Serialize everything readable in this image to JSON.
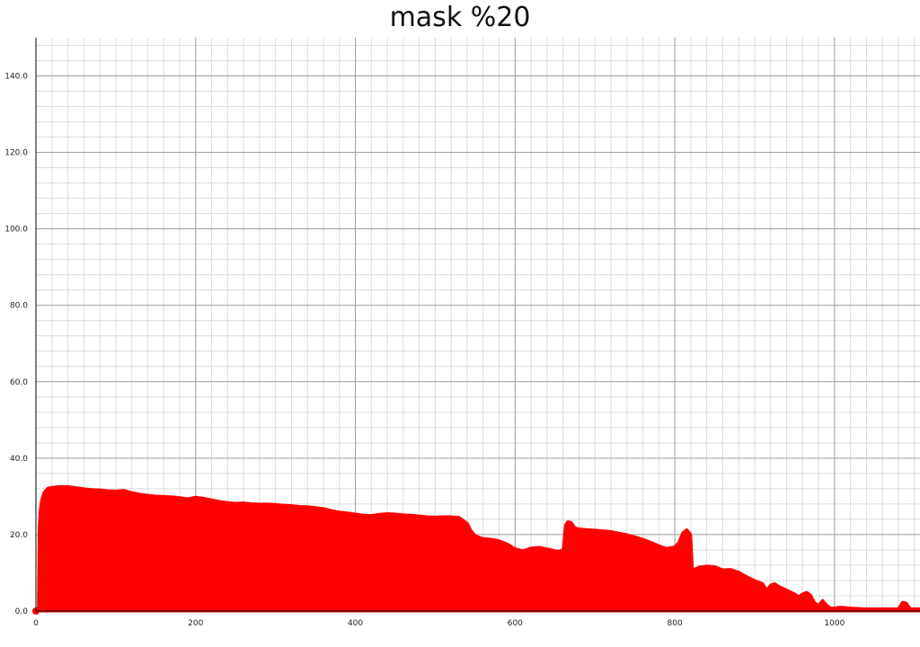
{
  "chart_data": {
    "type": "area",
    "title": "mask %20",
    "xlabel": "",
    "ylabel": "",
    "xlim": [
      0,
      1107
    ],
    "ylim": [
      0,
      150
    ],
    "x_ticks": [
      0,
      200,
      400,
      600,
      800,
      1000
    ],
    "x_tick_labels": [
      "0",
      "200",
      "400",
      "600",
      "800",
      "1000"
    ],
    "y_ticks": [
      0,
      20,
      40,
      60,
      80,
      100,
      120,
      140
    ],
    "y_tick_labels": [
      "0.0",
      "20.0",
      "40.0",
      "60.0",
      "80.0",
      "100.0",
      "120.0",
      "140.0"
    ],
    "grid": true,
    "minor_grid": true,
    "legend": "none",
    "color": "#ff0000",
    "series": [
      {
        "x": [
          0,
          3,
          4,
          5,
          7,
          10,
          15,
          20,
          30,
          40,
          50,
          60,
          70,
          80,
          90,
          100,
          110,
          120,
          130,
          140,
          150,
          160,
          170,
          180,
          190,
          200,
          210,
          220,
          230,
          240,
          250,
          260,
          270,
          280,
          290,
          300,
          310,
          320,
          330,
          340,
          350,
          360,
          370,
          380,
          390,
          400,
          410,
          420,
          430,
          440,
          450,
          460,
          470,
          480,
          490,
          500,
          510,
          520,
          530,
          540,
          545,
          550,
          555,
          560,
          570,
          580,
          590,
          600,
          610,
          620,
          630,
          640,
          650,
          655,
          660,
          663,
          666,
          670,
          675,
          680,
          690,
          700,
          710,
          720,
          730,
          740,
          750,
          760,
          770,
          780,
          790,
          800,
          805,
          810,
          815,
          820,
          822,
          825,
          830,
          840,
          850,
          860,
          870,
          880,
          890,
          900,
          910,
          915,
          920,
          925,
          930,
          940,
          950,
          955,
          960,
          965,
          970,
          975,
          980,
          985,
          990,
          995,
          1000,
          1005,
          1010,
          1020,
          1040,
          1060,
          1080,
          1085,
          1090,
          1095,
          1100,
          1107
        ],
        "y": [
          0,
          0,
          22,
          26,
          29,
          31,
          32.2,
          32.4,
          32.6,
          32.6,
          32.3,
          32.0,
          31.8,
          31.7,
          31.5,
          31.4,
          31.6,
          31.0,
          30.6,
          30.3,
          30.1,
          30.0,
          29.9,
          29.7,
          29.4,
          29.8,
          29.5,
          29.1,
          28.7,
          28.4,
          28.2,
          28.3,
          28.1,
          28.0,
          28.0,
          27.9,
          27.7,
          27.6,
          27.4,
          27.3,
          27.1,
          26.8,
          26.3,
          25.9,
          25.7,
          25.4,
          25.1,
          25.0,
          25.3,
          25.5,
          25.4,
          25.2,
          25.1,
          24.9,
          24.7,
          24.6,
          24.7,
          24.7,
          24.5,
          23.0,
          21.0,
          19.8,
          19.3,
          19.0,
          18.8,
          18.4,
          17.6,
          16.3,
          15.8,
          16.5,
          16.7,
          16.3,
          15.8,
          15.7,
          16.0,
          22.5,
          23.4,
          23.2,
          21.8,
          21.5,
          21.3,
          21.2,
          21.0,
          20.8,
          20.4,
          20.0,
          19.4,
          18.8,
          18.0,
          17.1,
          16.4,
          16.8,
          18.0,
          20.5,
          21.3,
          20.0,
          11.0,
          11.0,
          11.5,
          11.8,
          11.6,
          10.8,
          10.9,
          10.2,
          9.0,
          8.0,
          7.2,
          5.5,
          6.8,
          7.2,
          6.5,
          5.5,
          4.5,
          3.8,
          4.5,
          4.9,
          4.2,
          2.2,
          1.5,
          2.8,
          1.6,
          0.8,
          0.8,
          1.0,
          1.0,
          0.8,
          0.6,
          0.6,
          0.6,
          2.3,
          2.1,
          0.6,
          0.6,
          0.6
        ]
      }
    ]
  }
}
